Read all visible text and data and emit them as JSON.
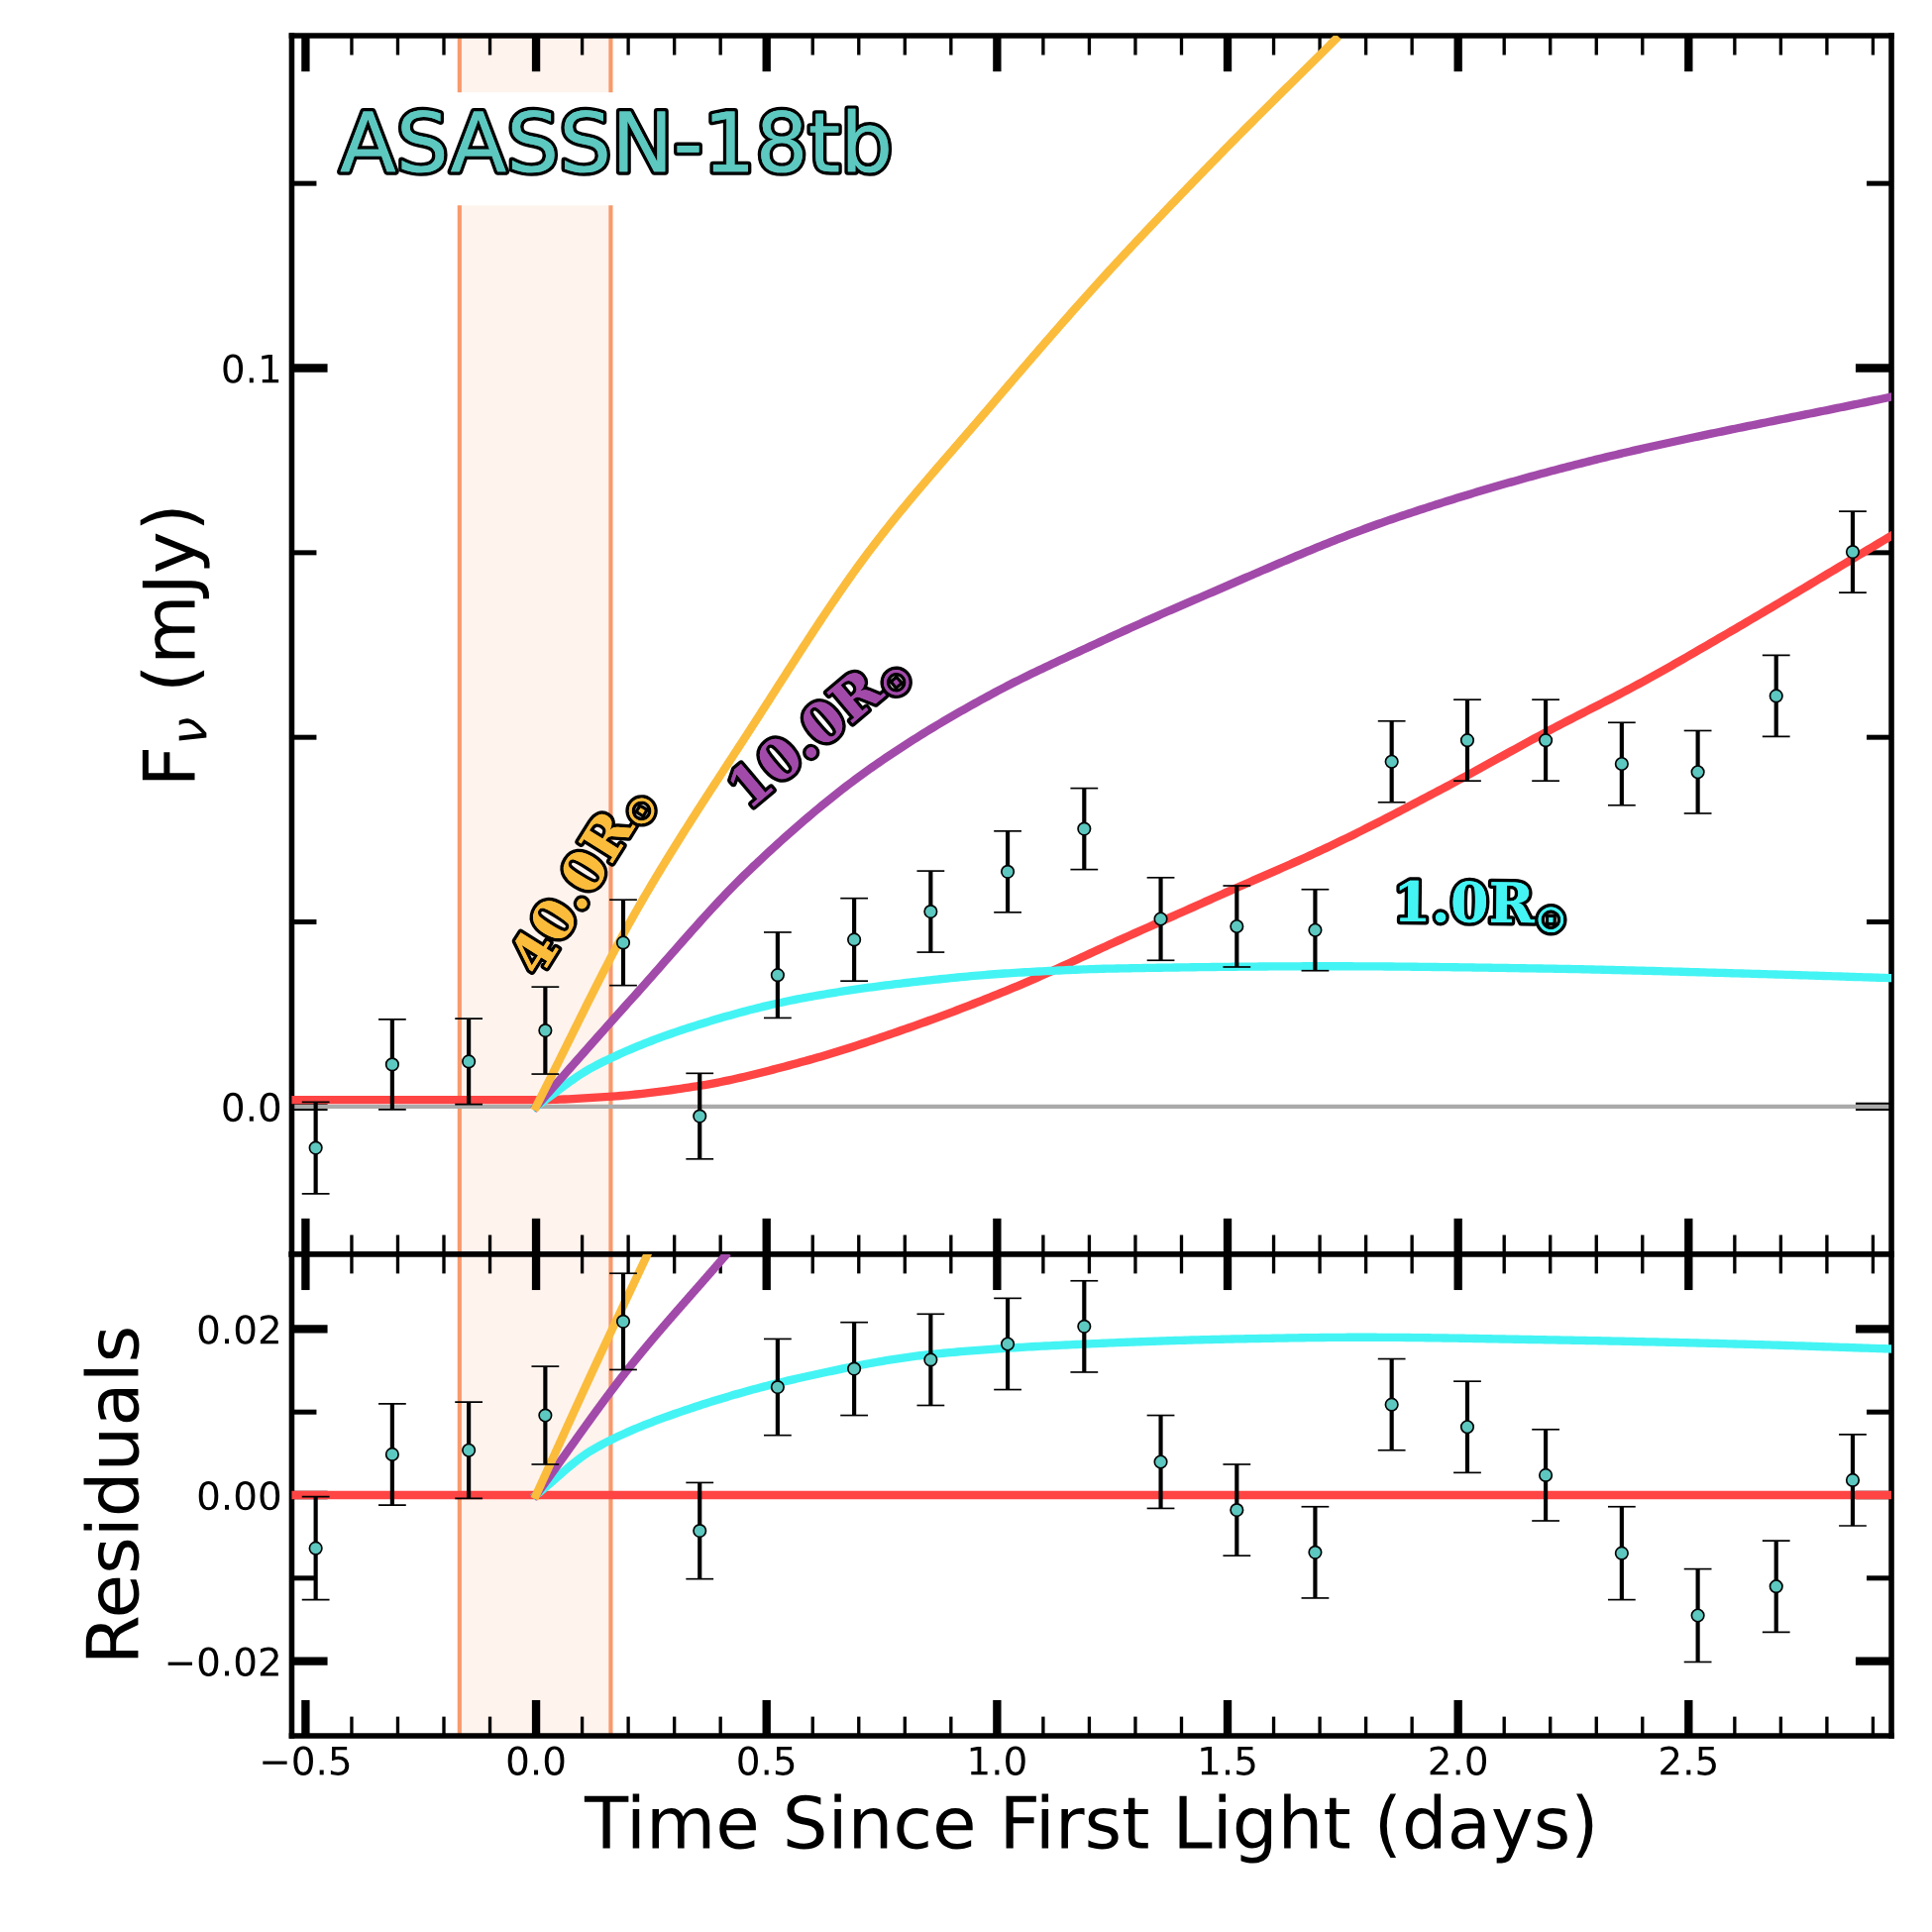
{
  "chart_data": [
    {
      "type": "line",
      "ylabel": "F$_{ν}$ (mJy)",
      "annotations": [
        "ASASSN-18tb"
      ],
      "xlim": [
        -0.53,
        2.94
      ],
      "ylim": [
        -0.02,
        0.145
      ],
      "xticks": [
        -0.5,
        {
          "value": -0.4,
          "label": null
        },
        {
          "value": -0.3,
          "label": null
        },
        {
          "value": -0.2,
          "label": null
        },
        {
          "value": -0.1,
          "label": null
        },
        0.0,
        {
          "value": 0.1,
          "label": null
        },
        {
          "value": 0.2,
          "label": null
        },
        {
          "value": 0.3,
          "label": null
        },
        {
          "value": 0.4,
          "label": null
        },
        0.5,
        {
          "value": 0.6,
          "label": null
        },
        {
          "value": 0.7,
          "label": null
        },
        {
          "value": 0.8,
          "label": null
        },
        {
          "value": 0.9,
          "label": null
        },
        1.0,
        {
          "value": 1.1,
          "label": null
        },
        {
          "value": 1.2,
          "label": null
        },
        {
          "value": 1.3,
          "label": null
        },
        {
          "value": 1.4,
          "label": null
        },
        1.5,
        {
          "value": 1.6,
          "label": null
        },
        {
          "value": 1.7,
          "label": null
        },
        {
          "value": 1.8,
          "label": null
        },
        {
          "value": 1.9,
          "label": null
        },
        2.0,
        {
          "value": 2.1,
          "label": null
        },
        {
          "value": 2.2,
          "label": null
        },
        {
          "value": 2.3,
          "label": null
        },
        {
          "value": 2.4,
          "label": null
        },
        2.5,
        {
          "value": 2.6,
          "label": null
        },
        {
          "value": 2.7,
          "label": null
        },
        {
          "value": 2.8,
          "label": null
        },
        {
          "value": 2.9,
          "label": null
        }
      ],
      "yticks": [
        {
          "value": 0.0,
          "label": "0.0"
        },
        {
          "value": 0.025,
          "label": null
        },
        {
          "value": 0.05,
          "label": null
        },
        {
          "value": 0.075,
          "label": null
        },
        {
          "value": 0.1,
          "label": "0.1"
        },
        {
          "value": 0.125,
          "label": null
        }
      ],
      "tick_labels": "y",
      "grid": false,
      "legend": false,
      "bands": [
        {
          "axis": "x",
          "from": -0.166,
          "to": 0.162,
          "color": "#f79a6c"
        }
      ],
      "ref_lines": [
        {
          "axis": "y",
          "value": 0,
          "color": "#aaaaaa"
        }
      ],
      "series": [
        {
          "color": "#ff4444",
          "line_style": "solid",
          "x": [
            -0.53,
            0.0,
            0.17,
            0.353,
            0.58,
            0.81,
            1.036,
            1.264,
            1.49,
            1.72,
            1.95,
            2.2,
            2.4,
            2.574,
            2.94
          ],
          "values": [
            0.0009,
            0.0009,
            0.0014,
            0.0028,
            0.0061,
            0.0107,
            0.0161,
            0.0225,
            0.0288,
            0.0352,
            0.0425,
            0.051,
            0.0575,
            0.0637,
            0.0773
          ]
        },
        {
          "name": "1.0R$_{⊙}$",
          "color": "#44f4f4",
          "line_style": "solid",
          "x": [
            0.0,
            0.125,
            0.353,
            0.58,
            0.81,
            1.036,
            1.26,
            1.72,
            2.175,
            2.63,
            2.94
          ],
          "values": [
            0.0,
            0.0054,
            0.0111,
            0.0147,
            0.0168,
            0.0181,
            0.0187,
            0.019,
            0.0187,
            0.018,
            0.0174
          ]
        },
        {
          "name": "10.0R$_{⊙}$",
          "color": "#a24aaa",
          "line_style": "solid",
          "x": [
            0.0,
            0.212,
            0.466,
            0.719,
            0.993,
            1.226,
            1.424,
            1.855,
            2.286,
            2.94
          ],
          "values": [
            0.0,
            0.0149,
            0.0322,
            0.0455,
            0.056,
            0.063,
            0.0685,
            0.0795,
            0.0874,
            0.0961
          ]
        },
        {
          "name": "40.0R$_{⊙}$",
          "color": "#fbbc3c",
          "line_style": "solid",
          "x": [
            0.0,
            0.212,
            0.466,
            0.719,
            0.973,
            1.226,
            1.48,
            1.734
          ],
          "values": [
            0.0,
            0.0259,
            0.0512,
            0.0749,
            0.0939,
            0.112,
            0.1287,
            0.1445
          ]
        },
        {
          "type": "scatter",
          "color": "#5cc8c0",
          "marker": "circle",
          "x": [
            -0.478,
            -0.312,
            -0.146,
            0.02,
            0.189,
            0.355,
            0.524,
            0.69,
            0.856,
            1.023,
            1.189,
            1.355,
            1.52,
            1.69,
            1.856,
            2.02,
            2.19,
            2.355,
            2.52,
            2.69,
            2.856
          ],
          "values": [
            -0.0056,
            0.0057,
            0.0061,
            0.0103,
            0.0222,
            -0.0013,
            0.0178,
            0.0226,
            0.0264,
            0.0318,
            0.0376,
            0.0254,
            0.0244,
            0.0239,
            0.0467,
            0.0496,
            0.0496,
            0.0464,
            0.0453,
            0.0556,
            0.0751
          ],
          "errors": [
            0.0062,
            0.0061,
            0.0058,
            0.0059,
            0.0058,
            0.0058,
            0.0058,
            0.0056,
            0.0055,
            0.0055,
            0.0055,
            0.0056,
            0.0055,
            0.0055,
            0.0055,
            0.0055,
            0.0055,
            0.0056,
            0.0056,
            0.0055,
            0.0055
          ]
        }
      ]
    },
    {
      "type": "line",
      "ylabel": "Residuals",
      "xlabel": "Time Since First Light (days)",
      "xlim": [
        -0.53,
        2.94
      ],
      "ylim": [
        -0.029,
        0.029
      ],
      "xticks": [
        {
          "value": -0.5,
          "label": "−0.5"
        },
        {
          "value": -0.4,
          "label": null
        },
        {
          "value": -0.3,
          "label": null
        },
        {
          "value": -0.2,
          "label": null
        },
        {
          "value": -0.1,
          "label": null
        },
        {
          "value": 0.0,
          "label": "0.0"
        },
        {
          "value": 0.1,
          "label": null
        },
        {
          "value": 0.2,
          "label": null
        },
        {
          "value": 0.3,
          "label": null
        },
        {
          "value": 0.4,
          "label": null
        },
        {
          "value": 0.5,
          "label": "0.5"
        },
        {
          "value": 0.6,
          "label": null
        },
        {
          "value": 0.7,
          "label": null
        },
        {
          "value": 0.8,
          "label": null
        },
        {
          "value": 0.9,
          "label": null
        },
        {
          "value": 1.0,
          "label": "1.0"
        },
        {
          "value": 1.1,
          "label": null
        },
        {
          "value": 1.2,
          "label": null
        },
        {
          "value": 1.3,
          "label": null
        },
        {
          "value": 1.4,
          "label": null
        },
        {
          "value": 1.5,
          "label": "1.5"
        },
        {
          "value": 1.6,
          "label": null
        },
        {
          "value": 1.7,
          "label": null
        },
        {
          "value": 1.8,
          "label": null
        },
        {
          "value": 1.9,
          "label": null
        },
        {
          "value": 2.0,
          "label": "2.0"
        },
        {
          "value": 2.1,
          "label": null
        },
        {
          "value": 2.2,
          "label": null
        },
        {
          "value": 2.3,
          "label": null
        },
        {
          "value": 2.4,
          "label": null
        },
        {
          "value": 2.5,
          "label": "2.5"
        },
        {
          "value": 2.6,
          "label": null
        },
        {
          "value": 2.7,
          "label": null
        },
        {
          "value": 2.8,
          "label": null
        },
        {
          "value": 2.9,
          "label": null
        }
      ],
      "yticks": [
        {
          "value": -0.02,
          "label": "−0.02"
        },
        {
          "value": -0.01,
          "label": null
        },
        {
          "value": 0.0,
          "label": "0.00"
        },
        {
          "value": 0.01,
          "label": null
        },
        {
          "value": 0.02,
          "label": "0.02"
        }
      ],
      "grid": false,
      "legend": false,
      "bands": [
        {
          "axis": "x",
          "from": -0.166,
          "to": 0.162,
          "color": "#f79a6c"
        }
      ],
      "series": [
        {
          "color": "#ff4444",
          "line_style": "solid",
          "x": [
            -0.53,
            2.94
          ],
          "values": [
            0.0,
            0.0
          ]
        },
        {
          "color": "#44f4f4",
          "line_style": "solid",
          "x": [
            0.0,
            0.124,
            0.312,
            0.58,
            0.85,
            1.12,
            1.52,
            1.79,
            2.19,
            2.6,
            2.94
          ],
          "values": [
            0.0,
            0.0055,
            0.01,
            0.0142,
            0.0169,
            0.018,
            0.0188,
            0.019,
            0.0187,
            0.0182,
            0.0176
          ]
        },
        {
          "color": "#a24aaa",
          "line_style": "solid",
          "x": [
            0.0,
            0.2,
            0.41
          ],
          "values": [
            0.0,
            0.0152,
            0.0288
          ]
        },
        {
          "color": "#fbbc3c",
          "line_style": "solid",
          "x": [
            0.0,
            0.12,
            0.24
          ],
          "values": [
            0.0,
            0.0146,
            0.0288
          ]
        },
        {
          "type": "scatter",
          "color": "#5cc8c0",
          "marker": "circle",
          "x": [
            -0.478,
            -0.312,
            -0.146,
            0.02,
            0.189,
            0.355,
            0.524,
            0.69,
            0.856,
            1.023,
            1.189,
            1.355,
            1.52,
            1.69,
            1.856,
            2.02,
            2.19,
            2.355,
            2.52,
            2.69,
            2.856
          ],
          "values": [
            -0.0064,
            0.0049,
            0.0054,
            0.0096,
            0.0209,
            -0.0043,
            0.013,
            0.0152,
            0.0163,
            0.0182,
            0.0203,
            0.004,
            -0.0018,
            -0.0069,
            0.0109,
            0.0082,
            0.0024,
            -0.007,
            -0.0145,
            -0.011,
            0.0018
          ],
          "errors": [
            0.0062,
            0.0061,
            0.0058,
            0.0059,
            0.0058,
            0.0058,
            0.0058,
            0.0056,
            0.0055,
            0.0055,
            0.0055,
            0.0056,
            0.0055,
            0.0055,
            0.0055,
            0.0055,
            0.0055,
            0.0056,
            0.0056,
            0.0055,
            0.0055
          ]
        }
      ]
    }
  ]
}
